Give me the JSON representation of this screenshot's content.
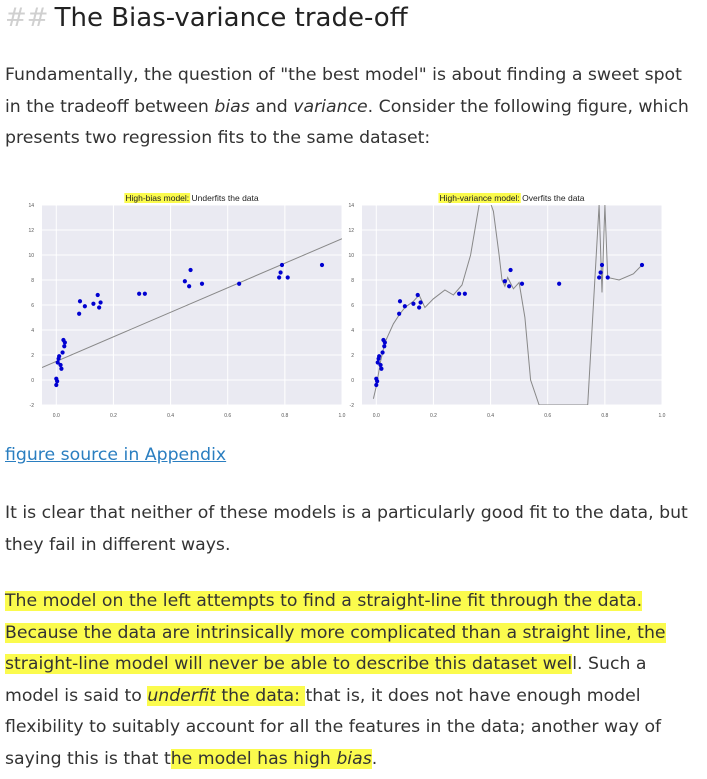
{
  "heading": {
    "hashes": "##",
    "title": "The Bias-variance trade-off"
  },
  "intro": {
    "before_bias": "Fundamentally, the question of \"the best model\" is about finding a sweet spot in the tradeoff between ",
    "bias": "bias",
    "and": " and ",
    "variance": "variance",
    "after": ". Consider the following figure, which presents two regression fits to the same dataset:"
  },
  "figure_link": "figure source in Appendix",
  "para2": "It is clear that neither of these models is a particularly good fit to the data, but they fail in different ways.",
  "para3": {
    "hl1": "The model on the left attempts to find a straight-line fit through the data. Because the data are intrinsically more complicated than a straight line, the straight-line model will never be able to describe this dataset wel",
    "l": "l",
    "t1": ". Such a model is said to ",
    "underfit": "underfit",
    "t2": " the data: ",
    "t3": "that is, it does not have enough model flexibility to suitably account for all the features in the data; another way of saying this is that t",
    "hl2": "he model has high ",
    "bias": "bias",
    "end": "."
  },
  "colors": {
    "highlight": "#fbfb4d",
    "link": "#2a7ec0",
    "points": "#0000d0",
    "fit": "#888888",
    "plot_bg": "#eaeaf2"
  },
  "chart_data": [
    {
      "type": "scatter",
      "title_highlight": "High-bias model:",
      "title_rest": " Underfits the data",
      "xlim": [
        -0.05,
        1.0
      ],
      "ylim": [
        -2,
        14
      ],
      "xticks": [
        "0.0",
        "0.2",
        "0.4",
        "0.6",
        "0.8",
        "1.0"
      ],
      "yticks": [
        "-2",
        "0",
        "2",
        "4",
        "6",
        "8",
        "10",
        "12",
        "14"
      ],
      "grid": true,
      "fit": {
        "type": "line",
        "x": [
          -0.05,
          1.0
        ],
        "y": [
          1.0,
          11.3
        ]
      },
      "points": [
        [
          0.0,
          0.1
        ],
        [
          0.0,
          -0.4
        ],
        [
          0.003,
          -0.1
        ],
        [
          0.005,
          1.4
        ],
        [
          0.008,
          1.7
        ],
        [
          0.01,
          1.9
        ],
        [
          0.015,
          1.2
        ],
        [
          0.018,
          0.9
        ],
        [
          0.022,
          2.2
        ],
        [
          0.025,
          3.2
        ],
        [
          0.028,
          2.7
        ],
        [
          0.03,
          3.0
        ],
        [
          0.08,
          5.3
        ],
        [
          0.083,
          6.3
        ],
        [
          0.1,
          5.9
        ],
        [
          0.13,
          6.1
        ],
        [
          0.145,
          6.8
        ],
        [
          0.15,
          5.8
        ],
        [
          0.155,
          6.2
        ],
        [
          0.29,
          6.9
        ],
        [
          0.31,
          6.9
        ],
        [
          0.45,
          7.9
        ],
        [
          0.465,
          7.5
        ],
        [
          0.47,
          8.8
        ],
        [
          0.51,
          7.7
        ],
        [
          0.64,
          7.7
        ],
        [
          0.78,
          8.2
        ],
        [
          0.785,
          8.6
        ],
        [
          0.79,
          9.2
        ],
        [
          0.81,
          8.2
        ],
        [
          0.93,
          9.2
        ]
      ]
    },
    {
      "type": "scatter",
      "title_highlight": "High-variance model:",
      "title_rest": " Overfits the data",
      "xlim": [
        -0.05,
        1.0
      ],
      "ylim": [
        -2,
        14
      ],
      "xticks": [
        "0.0",
        "0.2",
        "0.4",
        "0.6",
        "0.8",
        "1.0"
      ],
      "yticks": [
        "-2",
        "0",
        "2",
        "4",
        "6",
        "8",
        "10",
        "12",
        "14"
      ],
      "grid": true,
      "fit": {
        "type": "curve",
        "x": [
          -0.01,
          0.0,
          0.015,
          0.03,
          0.06,
          0.08,
          0.1,
          0.13,
          0.15,
          0.17,
          0.2,
          0.24,
          0.27,
          0.3,
          0.33,
          0.36,
          0.39,
          0.41,
          0.43,
          0.44,
          0.45,
          0.46,
          0.48,
          0.5,
          0.52,
          0.54,
          0.57,
          0.6,
          0.63,
          0.66,
          0.7,
          0.74,
          0.78,
          0.79,
          0.8,
          0.81,
          0.85,
          0.9,
          0.93
        ],
        "y": [
          -1.5,
          -0.5,
          1.5,
          3.0,
          4.5,
          5.2,
          5.8,
          6.3,
          6.8,
          5.8,
          6.5,
          7.2,
          6.8,
          7.6,
          10.0,
          14.0,
          14.8,
          13.5,
          10.0,
          8.0,
          7.5,
          8.2,
          7.3,
          7.8,
          5.0,
          0.0,
          -2.0,
          -2.0,
          -2.0,
          -2.0,
          -2.0,
          -2.0,
          14.0,
          7.0,
          14.0,
          8.2,
          8.0,
          8.5,
          9.2
        ]
      },
      "points": [
        [
          0.0,
          0.1
        ],
        [
          0.0,
          -0.4
        ],
        [
          0.003,
          -0.1
        ],
        [
          0.005,
          1.4
        ],
        [
          0.008,
          1.7
        ],
        [
          0.01,
          1.9
        ],
        [
          0.015,
          1.2
        ],
        [
          0.018,
          0.9
        ],
        [
          0.022,
          2.2
        ],
        [
          0.025,
          3.2
        ],
        [
          0.028,
          2.7
        ],
        [
          0.03,
          3.0
        ],
        [
          0.08,
          5.3
        ],
        [
          0.083,
          6.3
        ],
        [
          0.1,
          5.9
        ],
        [
          0.13,
          6.1
        ],
        [
          0.145,
          6.8
        ],
        [
          0.15,
          5.8
        ],
        [
          0.155,
          6.2
        ],
        [
          0.29,
          6.9
        ],
        [
          0.31,
          6.9
        ],
        [
          0.45,
          7.9
        ],
        [
          0.465,
          7.5
        ],
        [
          0.47,
          8.8
        ],
        [
          0.51,
          7.7
        ],
        [
          0.64,
          7.7
        ],
        [
          0.78,
          8.2
        ],
        [
          0.785,
          8.6
        ],
        [
          0.79,
          9.2
        ],
        [
          0.81,
          8.2
        ],
        [
          0.93,
          9.2
        ]
      ]
    }
  ]
}
